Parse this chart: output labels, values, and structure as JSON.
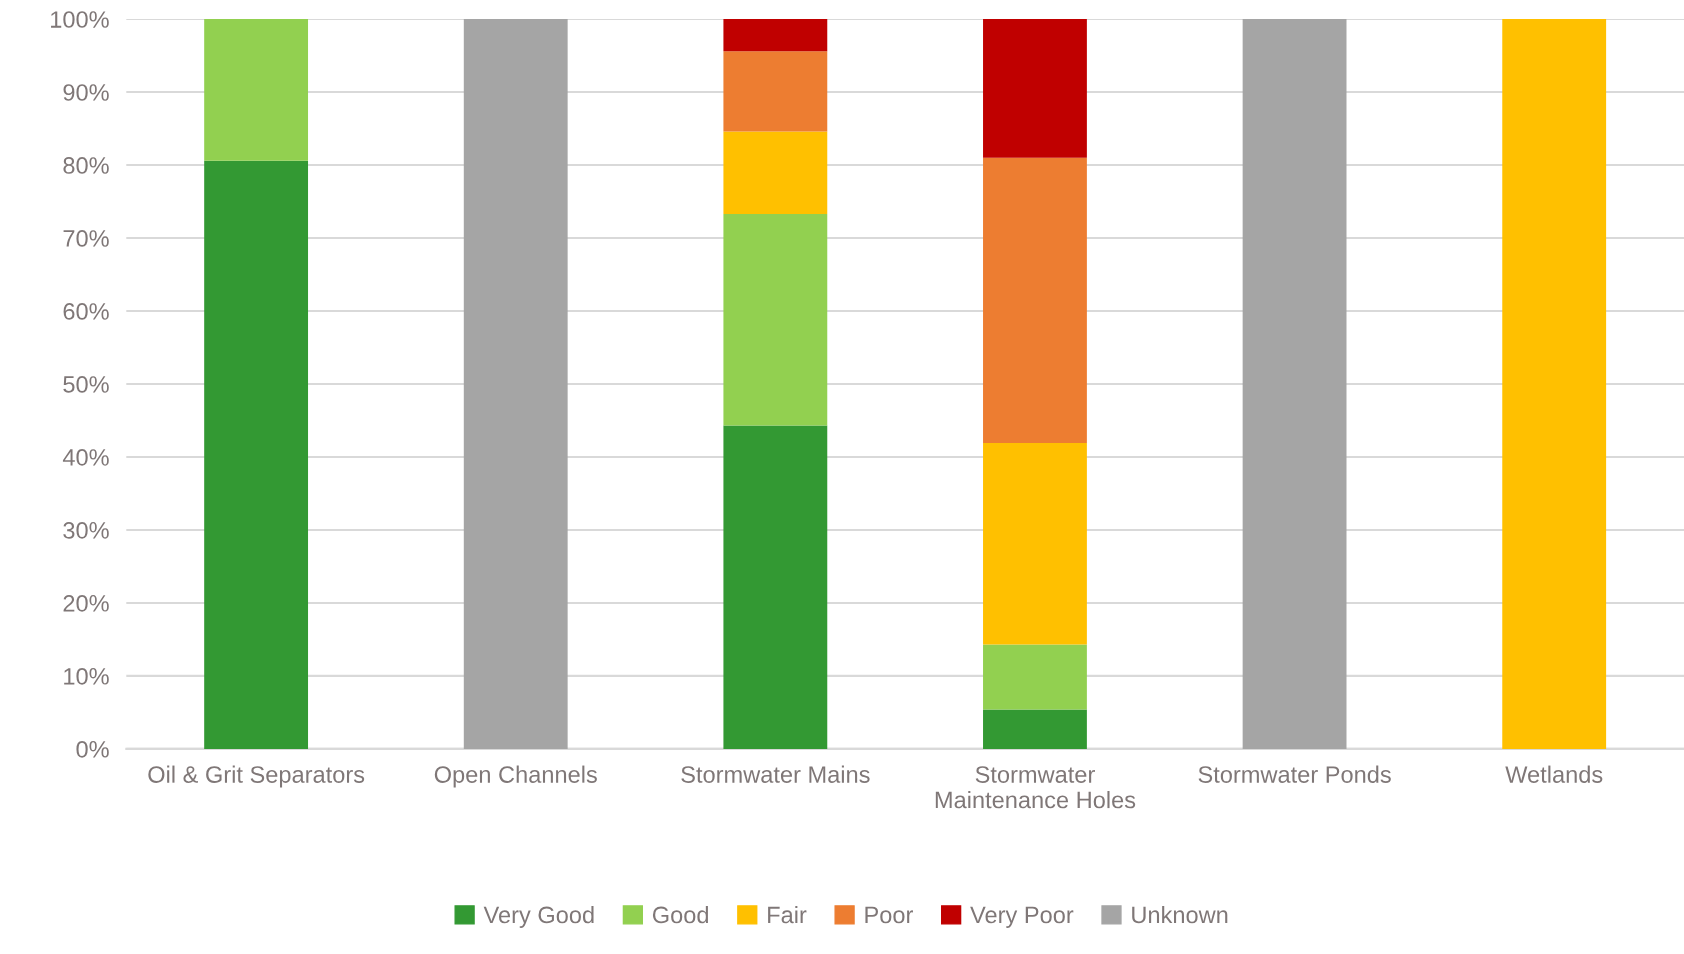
{
  "chart_data": {
    "type": "bar",
    "stacked": true,
    "categories": [
      "Oil & Grit Separators",
      "Open Channels",
      "Stormwater Mains",
      "Stormwater\nMaintenance Holes",
      "Stormwater Ponds",
      "Wetlands"
    ],
    "series": [
      {
        "name": "Very Good",
        "color": "#339933",
        "values": [
          80.6,
          0,
          44.3,
          5.4,
          0,
          0
        ]
      },
      {
        "name": "Good",
        "color": "#92d050",
        "values": [
          19.4,
          0,
          29.0,
          8.9,
          0,
          0
        ]
      },
      {
        "name": "Fair",
        "color": "#ffc000",
        "values": [
          0,
          0,
          11.3,
          27.6,
          0,
          100
        ]
      },
      {
        "name": "Poor",
        "color": "#ed7d31",
        "values": [
          0,
          0,
          11.0,
          39.1,
          0,
          0
        ]
      },
      {
        "name": "Very Poor",
        "color": "#c00000",
        "values": [
          0,
          0,
          4.4,
          19.0,
          0,
          0
        ]
      },
      {
        "name": "Unknown",
        "color": "#a5a5a5",
        "values": [
          0,
          100,
          0,
          0,
          100,
          0
        ]
      }
    ],
    "ylim": [
      0,
      100
    ],
    "yticks": [
      {
        "value": 0,
        "label": "0%"
      },
      {
        "value": 10,
        "label": "10%"
      },
      {
        "value": 20,
        "label": "20%"
      },
      {
        "value": 30,
        "label": "30%"
      },
      {
        "value": 40,
        "label": "40%"
      },
      {
        "value": 50,
        "label": "50%"
      },
      {
        "value": 60,
        "label": "60%"
      },
      {
        "value": 70,
        "label": "70%"
      },
      {
        "value": 80,
        "label": "80%"
      },
      {
        "value": 90,
        "label": "90%"
      },
      {
        "value": 100,
        "label": "100%"
      }
    ],
    "grid": "y",
    "legend": "bottom"
  }
}
